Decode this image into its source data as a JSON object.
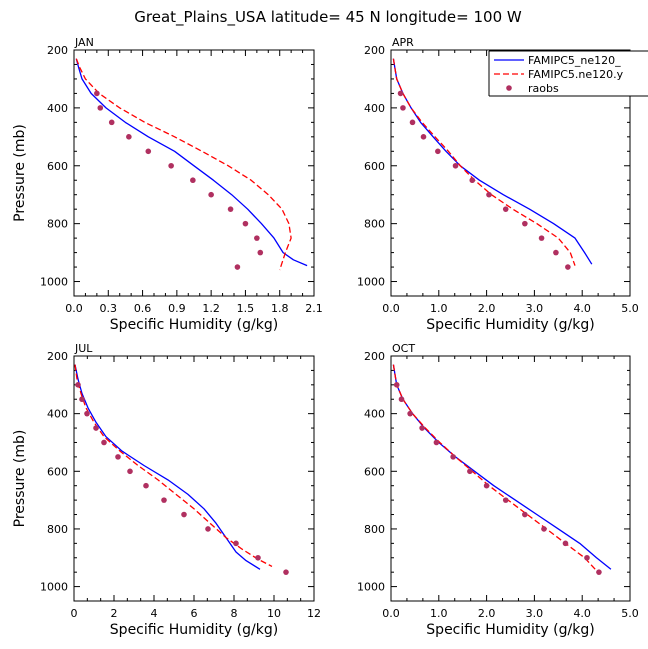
{
  "figure": {
    "title": "Great_Plains_USA  latitude= 45 N longitude= 100 W"
  },
  "legend": {
    "entries": [
      {
        "label": "FAMIPC5_ne120_",
        "color": "#0000ff",
        "style": "solid"
      },
      {
        "label": "FAMIPC5.ne120.y",
        "color": "#ff0000",
        "style": "dashed"
      },
      {
        "label": "raobs",
        "color": "#b03060",
        "style": "dot"
      }
    ]
  },
  "chart_data": [
    {
      "type": "line",
      "title": "JAN",
      "xlabel": "Specific Humidity (g/kg)",
      "ylabel": "Pressure (mb)",
      "xlim": [
        0,
        2.1
      ],
      "ylim": [
        200,
        1050
      ],
      "x_ticks": [
        0,
        0.3,
        0.6,
        0.9,
        1.2,
        1.5,
        1.8,
        2.1
      ],
      "x_tick_labels": [
        "0.0",
        "0.3",
        "0.6",
        "0.9",
        "1.2",
        "1.5",
        "1.8",
        "2.1"
      ],
      "y_ticks": [
        200,
        400,
        600,
        800,
        1000
      ],
      "series": [
        {
          "name": "FAMIPC5_ne120_",
          "points": [
            [
              0.02,
              230
            ],
            [
              0.04,
              260
            ],
            [
              0.07,
              300
            ],
            [
              0.15,
              350
            ],
            [
              0.28,
              400
            ],
            [
              0.45,
              450
            ],
            [
              0.65,
              500
            ],
            [
              0.88,
              550
            ],
            [
              1.05,
              600
            ],
            [
              1.22,
              650
            ],
            [
              1.38,
              700
            ],
            [
              1.52,
              750
            ],
            [
              1.64,
              800
            ],
            [
              1.75,
              850
            ],
            [
              1.83,
              900
            ],
            [
              1.92,
              925
            ],
            [
              2.04,
              945
            ]
          ]
        },
        {
          "name": "FAMIPC5.ne120.y",
          "points": [
            [
              0.02,
              230
            ],
            [
              0.05,
              260
            ],
            [
              0.1,
              300
            ],
            [
              0.22,
              350
            ],
            [
              0.4,
              400
            ],
            [
              0.62,
              450
            ],
            [
              0.88,
              500
            ],
            [
              1.12,
              550
            ],
            [
              1.35,
              600
            ],
            [
              1.55,
              650
            ],
            [
              1.7,
              700
            ],
            [
              1.82,
              750
            ],
            [
              1.88,
              800
            ],
            [
              1.9,
              850
            ],
            [
              1.85,
              900
            ],
            [
              1.8,
              960
            ]
          ]
        },
        {
          "name": "raobs",
          "points": [
            [
              0.2,
              350
            ],
            [
              0.23,
              400
            ],
            [
              0.33,
              450
            ],
            [
              0.48,
              500
            ],
            [
              0.65,
              550
            ],
            [
              0.85,
              600
            ],
            [
              1.04,
              650
            ],
            [
              1.2,
              700
            ],
            [
              1.37,
              750
            ],
            [
              1.5,
              800
            ],
            [
              1.6,
              850
            ],
            [
              1.63,
              900
            ],
            [
              1.43,
              950
            ]
          ]
        }
      ]
    },
    {
      "type": "line",
      "title": "APR",
      "xlabel": "Specific Humidity (g/kg)",
      "ylabel": "",
      "xlim": [
        0,
        5
      ],
      "ylim": [
        200,
        1050
      ],
      "x_ticks": [
        0,
        1,
        2,
        3,
        4,
        5
      ],
      "x_tick_labels": [
        "0.0",
        "1.0",
        "2.0",
        "3.0",
        "4.0",
        "5.0"
      ],
      "y_ticks": [
        200,
        400,
        600,
        800,
        1000
      ],
      "series": [
        {
          "name": "FAMIPC5_ne120_",
          "points": [
            [
              0.05,
              230
            ],
            [
              0.08,
              260
            ],
            [
              0.12,
              300
            ],
            [
              0.25,
              350
            ],
            [
              0.42,
              400
            ],
            [
              0.62,
              450
            ],
            [
              0.88,
              500
            ],
            [
              1.15,
              550
            ],
            [
              1.45,
              600
            ],
            [
              1.85,
              650
            ],
            [
              2.35,
              700
            ],
            [
              2.9,
              750
            ],
            [
              3.4,
              800
            ],
            [
              3.85,
              850
            ],
            [
              4.05,
              900
            ],
            [
              4.2,
              940
            ]
          ]
        },
        {
          "name": "FAMIPC5.ne120.y",
          "points": [
            [
              0.05,
              230
            ],
            [
              0.08,
              260
            ],
            [
              0.12,
              300
            ],
            [
              0.25,
              350
            ],
            [
              0.42,
              400
            ],
            [
              0.65,
              450
            ],
            [
              0.92,
              500
            ],
            [
              1.2,
              550
            ],
            [
              1.45,
              600
            ],
            [
              1.75,
              650
            ],
            [
              2.1,
              700
            ],
            [
              2.55,
              750
            ],
            [
              3.05,
              800
            ],
            [
              3.5,
              850
            ],
            [
              3.75,
              900
            ],
            [
              3.85,
              945
            ]
          ]
        },
        {
          "name": "raobs",
          "points": [
            [
              0.2,
              350
            ],
            [
              0.25,
              400
            ],
            [
              0.45,
              450
            ],
            [
              0.68,
              500
            ],
            [
              0.98,
              550
            ],
            [
              1.35,
              600
            ],
            [
              1.7,
              650
            ],
            [
              2.05,
              700
            ],
            [
              2.4,
              750
            ],
            [
              2.8,
              800
            ],
            [
              3.15,
              850
            ],
            [
              3.45,
              900
            ],
            [
              3.7,
              950
            ]
          ]
        }
      ]
    },
    {
      "type": "line",
      "title": "JUL",
      "xlabel": "Specific Humidity (g/kg)",
      "ylabel": "Pressure (mb)",
      "xlim": [
        0,
        12
      ],
      "ylim": [
        200,
        1050
      ],
      "x_ticks": [
        0,
        2,
        4,
        6,
        8,
        10,
        12
      ],
      "x_tick_labels": [
        "0",
        "2",
        "4",
        "6",
        "8",
        "10",
        "12"
      ],
      "y_ticks": [
        200,
        400,
        600,
        800,
        1000
      ],
      "series": [
        {
          "name": "FAMIPC5_ne120_",
          "points": [
            [
              0.05,
              230
            ],
            [
              0.2,
              280
            ],
            [
              0.4,
              330
            ],
            [
              0.7,
              380
            ],
            [
              1.1,
              430
            ],
            [
              1.6,
              480
            ],
            [
              2.4,
              530
            ],
            [
              3.5,
              580
            ],
            [
              4.7,
              630
            ],
            [
              5.7,
              680
            ],
            [
              6.5,
              730
            ],
            [
              7.1,
              780
            ],
            [
              7.6,
              830
            ],
            [
              8.1,
              880
            ],
            [
              8.6,
              910
            ],
            [
              9.3,
              940
            ]
          ]
        },
        {
          "name": "FAMIPC5.ne120.y",
          "points": [
            [
              0.05,
              230
            ],
            [
              0.15,
              280
            ],
            [
              0.35,
              330
            ],
            [
              0.6,
              380
            ],
            [
              1.0,
              430
            ],
            [
              1.5,
              480
            ],
            [
              2.3,
              530
            ],
            [
              3.2,
              580
            ],
            [
              4.2,
              630
            ],
            [
              5.1,
              680
            ],
            [
              6.0,
              730
            ],
            [
              6.8,
              780
            ],
            [
              7.6,
              830
            ],
            [
              8.4,
              870
            ],
            [
              9.2,
              905
            ],
            [
              9.9,
              930
            ]
          ]
        },
        {
          "name": "raobs",
          "points": [
            [
              0.2,
              300
            ],
            [
              0.4,
              350
            ],
            [
              0.65,
              400
            ],
            [
              1.1,
              450
            ],
            [
              1.5,
              500
            ],
            [
              2.2,
              550
            ],
            [
              2.8,
              600
            ],
            [
              3.6,
              650
            ],
            [
              4.5,
              700
            ],
            [
              5.5,
              750
            ],
            [
              6.7,
              800
            ],
            [
              8.1,
              850
            ],
            [
              9.2,
              900
            ],
            [
              10.6,
              950
            ]
          ]
        }
      ]
    },
    {
      "type": "line",
      "title": "OCT",
      "xlabel": "Specific Humidity (g/kg)",
      "ylabel": "",
      "xlim": [
        0,
        5
      ],
      "ylim": [
        200,
        1050
      ],
      "x_ticks": [
        0,
        1,
        2,
        3,
        4,
        5
      ],
      "x_tick_labels": [
        "0.0",
        "1.0",
        "2.0",
        "3.0",
        "4.0",
        "5.0"
      ],
      "y_ticks": [
        200,
        400,
        600,
        800,
        1000
      ],
      "series": [
        {
          "name": "FAMIPC5_ne120_",
          "points": [
            [
              0.05,
              230
            ],
            [
              0.08,
              260
            ],
            [
              0.12,
              300
            ],
            [
              0.25,
              350
            ],
            [
              0.45,
              400
            ],
            [
              0.7,
              450
            ],
            [
              1.0,
              500
            ],
            [
              1.35,
              550
            ],
            [
              1.75,
              600
            ],
            [
              2.15,
              650
            ],
            [
              2.6,
              700
            ],
            [
              3.05,
              750
            ],
            [
              3.5,
              800
            ],
            [
              3.95,
              850
            ],
            [
              4.3,
              900
            ],
            [
              4.6,
              940
            ]
          ]
        },
        {
          "name": "FAMIPC5.ne120.y",
          "points": [
            [
              0.05,
              230
            ],
            [
              0.08,
              260
            ],
            [
              0.12,
              300
            ],
            [
              0.25,
              350
            ],
            [
              0.45,
              400
            ],
            [
              0.72,
              450
            ],
            [
              1.02,
              500
            ],
            [
              1.35,
              550
            ],
            [
              1.7,
              600
            ],
            [
              2.05,
              650
            ],
            [
              2.45,
              700
            ],
            [
              2.85,
              750
            ],
            [
              3.25,
              800
            ],
            [
              3.65,
              850
            ],
            [
              4.05,
              900
            ],
            [
              4.3,
              945
            ]
          ]
        },
        {
          "name": "raobs",
          "points": [
            [
              0.12,
              300
            ],
            [
              0.22,
              350
            ],
            [
              0.4,
              400
            ],
            [
              0.65,
              450
            ],
            [
              0.95,
              500
            ],
            [
              1.3,
              550
            ],
            [
              1.65,
              600
            ],
            [
              2.0,
              650
            ],
            [
              2.4,
              700
            ],
            [
              2.8,
              750
            ],
            [
              3.2,
              800
            ],
            [
              3.65,
              850
            ],
            [
              4.1,
              900
            ],
            [
              4.35,
              950
            ]
          ]
        }
      ]
    }
  ]
}
